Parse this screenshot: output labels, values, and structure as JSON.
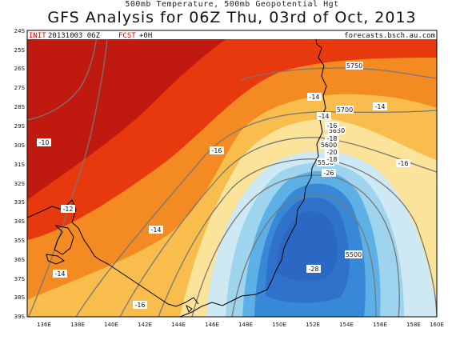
{
  "header": {
    "subtitle": "500mb Temperature, 500mb Geopotential Hgt",
    "title": "GFS Analysis for 06Z Thu, 03rd of Oct, 2013"
  },
  "info_bar": {
    "init_label": "INIT",
    "init_value": "20131003 06Z",
    "fcst_label": "FCST",
    "fcst_value": "+0H",
    "site": "forecasts.bsch.au.com"
  },
  "map": {
    "lat_range": [
      "24S",
      "39S"
    ],
    "lon_range": [
      "136E",
      "160E"
    ],
    "lat_ticks": [
      "24S",
      "25S",
      "26S",
      "27S",
      "28S",
      "29S",
      "30S",
      "31S",
      "32S",
      "33S",
      "34S",
      "35S",
      "36S",
      "37S",
      "38S",
      "39S"
    ],
    "lon_ticks": [
      "136E",
      "138E",
      "140E",
      "142E",
      "144E",
      "146E",
      "148E",
      "150E",
      "152E",
      "154E",
      "156E",
      "158E",
      "160E"
    ],
    "temperature_labels": [
      "-10",
      "-12",
      "-14",
      "-14",
      "-14",
      "-14",
      "-14",
      "-16",
      "-16",
      "-16",
      "-16",
      "-18",
      "-18",
      "-20",
      "-26",
      "-28"
    ],
    "height_labels": [
      "5750",
      "5700",
      "5650",
      "5600",
      "5550",
      "5500"
    ],
    "colors": {
      "band_warmest": "#c01a10",
      "band_warm": "#e8380e",
      "band_mid": "#f38a22",
      "band_cool": "#f9bd4d",
      "band_cooler": "#fbe49a",
      "band_cold1": "#cfe9f4",
      "band_cold2": "#9fd4ee",
      "band_cold3": "#5cb0e6",
      "band_cold4": "#3888d8",
      "band_coldest": "#2e72cc",
      "coastline": "#000000",
      "height_contour": "#777777",
      "label_fill": "#ffffff",
      "info_red": "#d40000"
    }
  }
}
